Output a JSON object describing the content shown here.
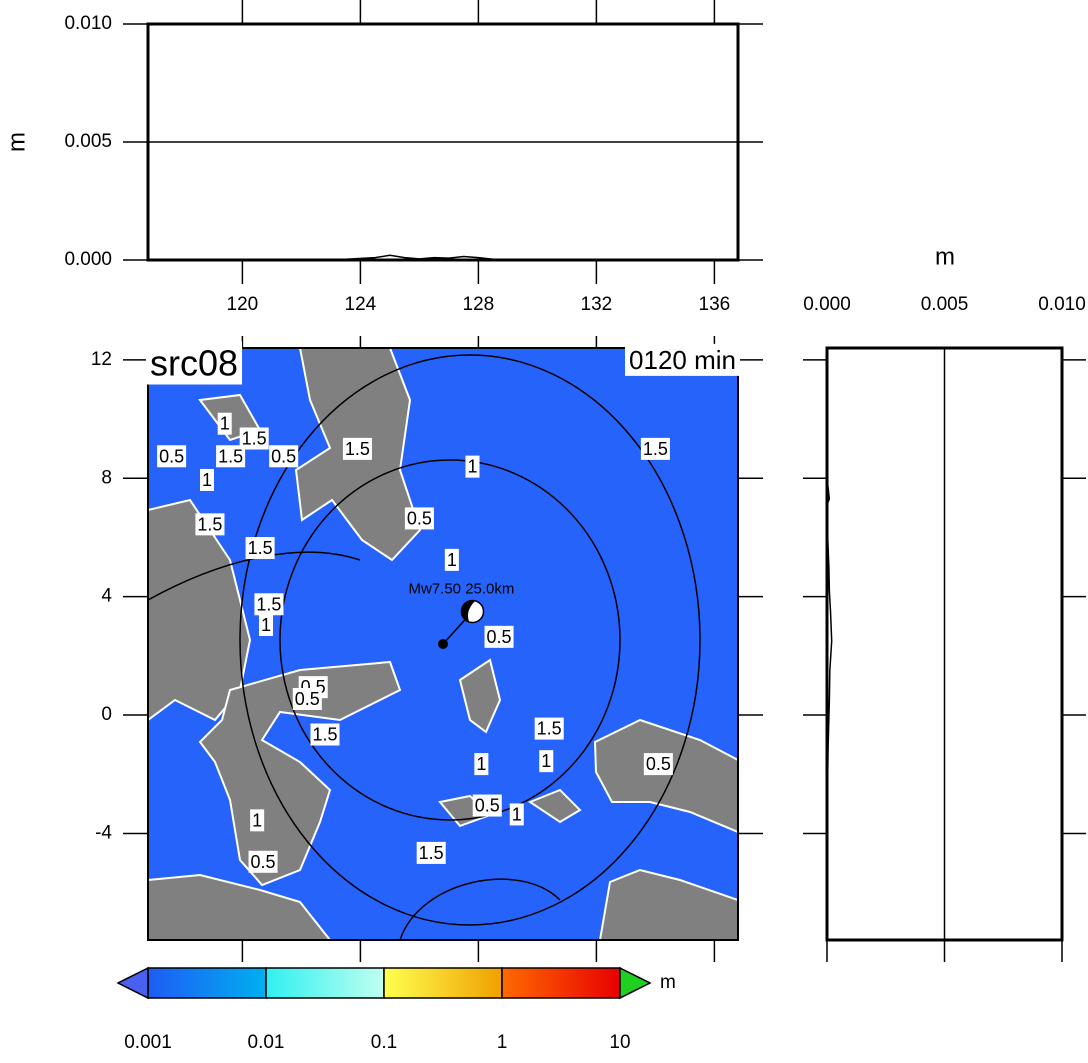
{
  "chart_data": [
    {
      "type": "line",
      "ylabel": "m",
      "xlim": [
        116.8,
        136.8
      ],
      "xticks": [
        120,
        124,
        128,
        132,
        136
      ],
      "ylim": [
        0,
        0.01
      ],
      "yticks": [
        {
          "value": 0,
          "label": "0.000"
        },
        {
          "value": 0.005,
          "label": "0.005"
        },
        {
          "value": 0.01,
          "label": "0.010"
        }
      ],
      "grid": true,
      "color": "#000000",
      "x": [
        117,
        120,
        122,
        123.5,
        124.5,
        125,
        125.5,
        126,
        126.5,
        127,
        127.5,
        128,
        128.5,
        130,
        133,
        136.8
      ],
      "values": [
        0,
        0,
        0,
        3e-05,
        0.0001,
        0.0002,
        0.0001,
        5e-05,
        0.0001,
        8e-05,
        0.00015,
        0.0001,
        3e-05,
        0,
        0,
        0
      ]
    },
    {
      "type": "map",
      "title": "src08",
      "annotation": "0120 min",
      "xlim": [
        116.8,
        136.8
      ],
      "ylim": [
        -7.6,
        12.4
      ],
      "xticks": [
        120,
        124,
        128,
        132,
        136
      ],
      "yticks": [
        -4,
        0,
        4,
        8,
        12
      ],
      "land_color": "#808080",
      "sea_color": "#2563fb",
      "epicenter": {
        "label": "Mw7.50 25.0km",
        "lon": 127.8,
        "lat": 3.5
      },
      "point": {
        "lon": 126.8,
        "lat": 2.4
      },
      "contour_labels": [
        {
          "label": "1.5",
          "lon": 134.0,
          "lat": 8.95
        },
        {
          "label": "1",
          "lon": 127.8,
          "lat": 8.35
        },
        {
          "label": "1.5",
          "lon": 123.9,
          "lat": 8.95
        },
        {
          "label": "0.5",
          "lon": 117.6,
          "lat": 8.7
        },
        {
          "label": "1.5",
          "lon": 119.6,
          "lat": 8.7
        },
        {
          "label": "1.5",
          "lon": 120.4,
          "lat": 9.3
        },
        {
          "label": "0.5",
          "lon": 121.4,
          "lat": 8.7
        },
        {
          "label": "1",
          "lon": 119.4,
          "lat": 9.8
        },
        {
          "label": "1",
          "lon": 118.8,
          "lat": 7.9
        },
        {
          "label": "1.5",
          "lon": 118.9,
          "lat": 6.4
        },
        {
          "label": "1.5",
          "lon": 120.6,
          "lat": 5.6
        },
        {
          "label": "0.5",
          "lon": 126.0,
          "lat": 6.6
        },
        {
          "label": "1",
          "lon": 127.1,
          "lat": 5.2
        },
        {
          "label": "1.5",
          "lon": 120.9,
          "lat": 3.7
        },
        {
          "label": "1",
          "lon": 120.8,
          "lat": 3.0
        },
        {
          "label": "0.5",
          "lon": 128.7,
          "lat": 2.6
        },
        {
          "label": "0.5",
          "lon": 122.4,
          "lat": 0.9
        },
        {
          "label": "0.5",
          "lon": 122.2,
          "lat": 0.5
        },
        {
          "label": "1.5",
          "lon": 122.8,
          "lat": -0.7
        },
        {
          "label": "1.5",
          "lon": 130.4,
          "lat": -0.5
        },
        {
          "label": "1",
          "lon": 128.1,
          "lat": -1.7
        },
        {
          "label": "1",
          "lon": 130.3,
          "lat": -1.6
        },
        {
          "label": "0.5",
          "lon": 134.1,
          "lat": -1.7
        },
        {
          "label": "0.5",
          "lon": 128.3,
          "lat": -3.1
        },
        {
          "label": "1",
          "lon": 129.3,
          "lat": -3.4
        },
        {
          "label": "1.5",
          "lon": 126.4,
          "lat": -4.7
        },
        {
          "label": "1",
          "lon": 120.5,
          "lat": -3.6
        },
        {
          "label": "0.5",
          "lon": 120.7,
          "lat": -5.0
        }
      ]
    },
    {
      "type": "line",
      "orientation": "vertical",
      "xlabel": "m",
      "xlim": [
        0,
        0.01
      ],
      "xticks": [
        {
          "value": 0,
          "label": "0.000"
        },
        {
          "value": 0.005,
          "label": "0.005"
        },
        {
          "value": 0.01,
          "label": "0.010"
        }
      ],
      "ylim": [
        -7.6,
        12.4
      ],
      "yticks": [
        -4,
        0,
        4,
        8,
        12
      ],
      "grid": true,
      "color": "#000000",
      "y": [
        12.4,
        8,
        7.3,
        7.1,
        6,
        5,
        4.2,
        3.5,
        2.5,
        1.5,
        0.5,
        -1,
        -2,
        -4,
        -7.6
      ],
      "values": [
        0,
        0,
        0.0001,
        0,
        3e-05,
        8e-05,
        0.0001,
        0.00015,
        0.0002,
        0.00012,
        0.0001,
        5e-05,
        3e-05,
        0,
        0
      ]
    },
    {
      "type": "colorbar",
      "unit": "m",
      "log": true,
      "xlim": [
        0.001,
        10
      ],
      "xticks": [
        0.001,
        0.01,
        0.1,
        1,
        10
      ],
      "colors": [
        "#1e5cf5",
        "#00b0f0",
        "#30f0f0",
        "#c0fff0",
        "#ffff50",
        "#f0a000",
        "#ff6a00",
        "#e80000"
      ],
      "under_color": "#4a60f0",
      "over_color": "#20d020"
    }
  ]
}
